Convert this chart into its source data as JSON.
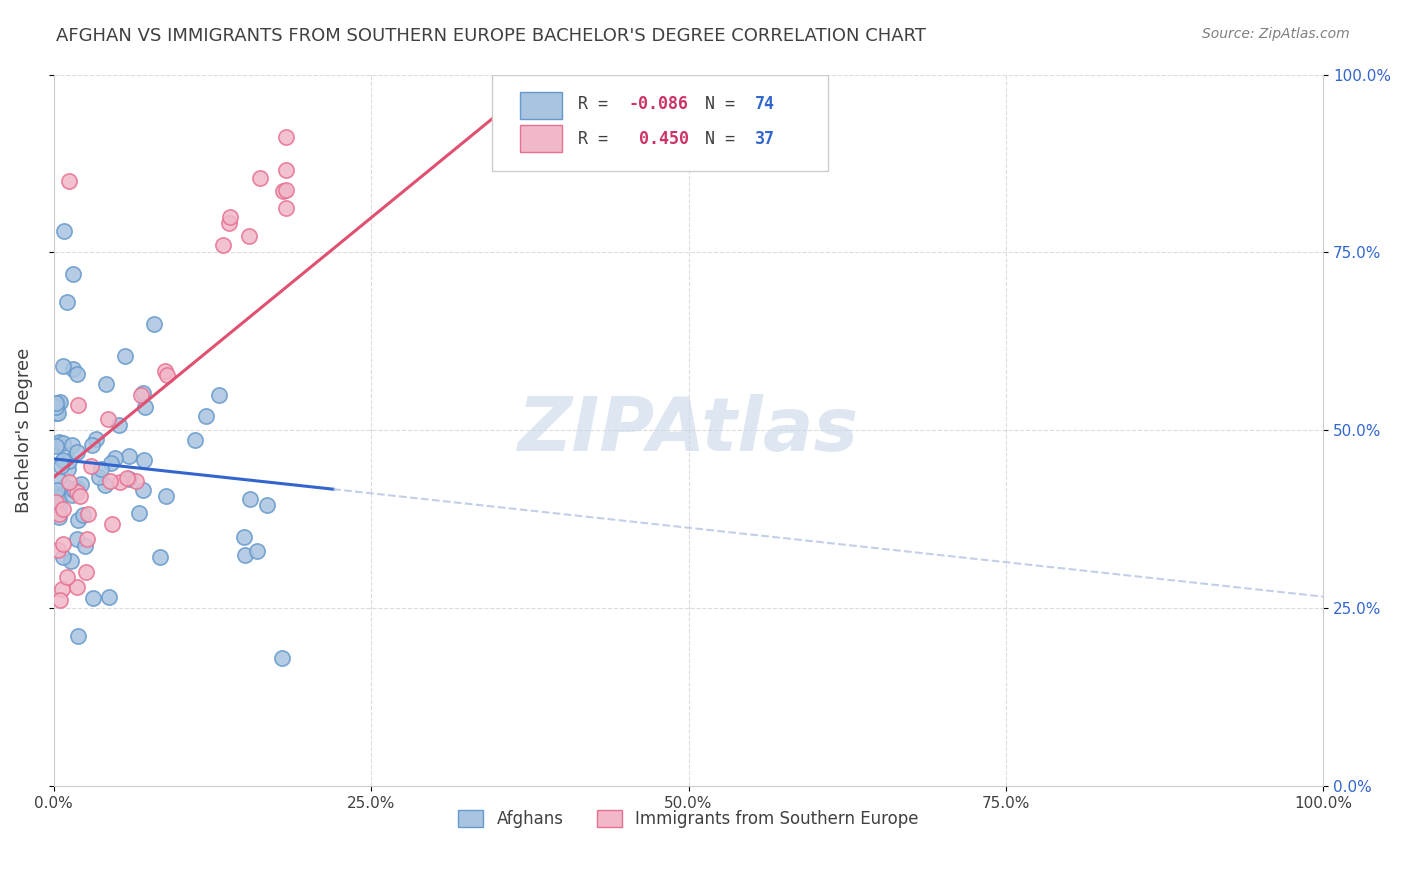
{
  "title": "AFGHAN VS IMMIGRANTS FROM SOUTHERN EUROPE BACHELOR'S DEGREE CORRELATION CHART",
  "source": "Source: ZipAtlas.com",
  "ylabel": "Bachelor's Degree",
  "xlabel": "",
  "xlim": [
    0.0,
    1.0
  ],
  "ylim": [
    0.0,
    1.0
  ],
  "xticks": [
    0.0,
    0.25,
    0.5,
    0.75,
    1.0
  ],
  "yticks": [
    0.0,
    0.25,
    0.5,
    0.75,
    1.0
  ],
  "xtick_labels": [
    "0.0%",
    "25.0%",
    "50.0%",
    "75.0%",
    "100.0%"
  ],
  "ytick_labels_right": [
    "0.0%",
    "25.0%",
    "50.0%",
    "75.0%",
    "100.0%"
  ],
  "series1_name": "Afghans",
  "series1_color": "#a8c4e0",
  "series1_edge_color": "#6699cc",
  "series1_R": -0.086,
  "series1_N": 74,
  "series2_name": "Immigrants from Southern Europe",
  "series2_color": "#f0b8c8",
  "series2_edge_color": "#e87090",
  "series2_R": 0.45,
  "series2_N": 37,
  "legend_R_color": "#cc3366",
  "legend_N_color": "#3366cc",
  "watermark": "ZIPAtlas",
  "watermark_color": "#c8d8e8",
  "background_color": "#ffffff",
  "grid_color": "#cccccc",
  "title_color": "#404040",
  "source_color": "#808080"
}
